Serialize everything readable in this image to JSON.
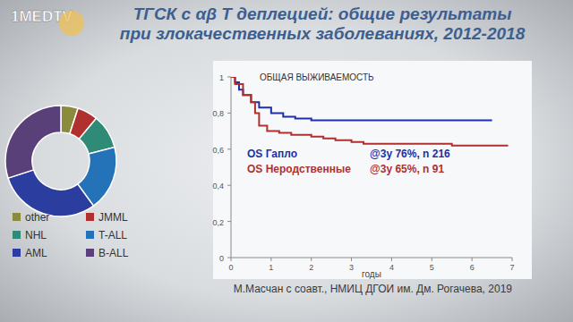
{
  "slide": {
    "title": [
      "ТГСК с αβ Т деплецией: общие результаты",
      "при злокачественных заболеваниях, 2012-2018"
    ],
    "source": "М.Масчан с соавт., НМИЦ ДГОИ им. Дм. Рогачева, 2019",
    "logo": "1MEDTV"
  },
  "chart_data": [
    {
      "type": "donut",
      "categories": [
        "other",
        "JMML",
        "NHL",
        "T-ALL",
        "AML",
        "B-ALL"
      ],
      "values": [
        5,
        6,
        10,
        19,
        30,
        30
      ],
      "colors": [
        "#8c8a3c",
        "#b0302e",
        "#2f8a78",
        "#2472b8",
        "#2b3ea0",
        "#5a4078"
      ]
    },
    {
      "type": "line",
      "title": "ОБЩАЯ ВЫЖИВАЕМОСТЬ",
      "x_label": "годы",
      "line_style": "step",
      "xlim": [
        0,
        7
      ],
      "xticks": [
        0,
        1,
        2,
        3,
        4,
        5,
        6,
        7
      ],
      "ylim": [
        0,
        1
      ],
      "yticks": [
        0,
        {
          "value": 0.2,
          "label": "0,2"
        },
        {
          "value": 0.4,
          "label": "0,4"
        },
        {
          "value": 0.6,
          "label": "0,6"
        },
        {
          "value": 0.8,
          "label": "0,8"
        },
        1
      ],
      "annotations": [
        "@3у 76%, n 216",
        "@3у 65%, n 91"
      ],
      "series": [
        {
          "name": "OS Гапло",
          "color": "#1e2fa8",
          "x": [
            0,
            0.1,
            0.2,
            0.3,
            0.5,
            0.7,
            1.0,
            1.3,
            1.6,
            2.0,
            3.0,
            4.0,
            5.0,
            6.5
          ],
          "values": [
            1,
            0.97,
            0.93,
            0.9,
            0.86,
            0.83,
            0.8,
            0.78,
            0.77,
            0.76,
            0.76,
            0.76,
            0.76,
            0.76
          ]
        },
        {
          "name": "OS Неродственные",
          "color": "#b03030",
          "x": [
            0,
            0.1,
            0.3,
            0.5,
            0.6,
            0.7,
            0.9,
            1.2,
            1.5,
            2.0,
            2.3,
            2.6,
            3.0,
            3.3,
            4.0,
            5.5,
            6.9
          ],
          "values": [
            1,
            0.96,
            0.9,
            0.86,
            0.8,
            0.73,
            0.7,
            0.69,
            0.68,
            0.67,
            0.66,
            0.65,
            0.64,
            0.63,
            0.63,
            0.62,
            0.62
          ]
        }
      ]
    }
  ]
}
